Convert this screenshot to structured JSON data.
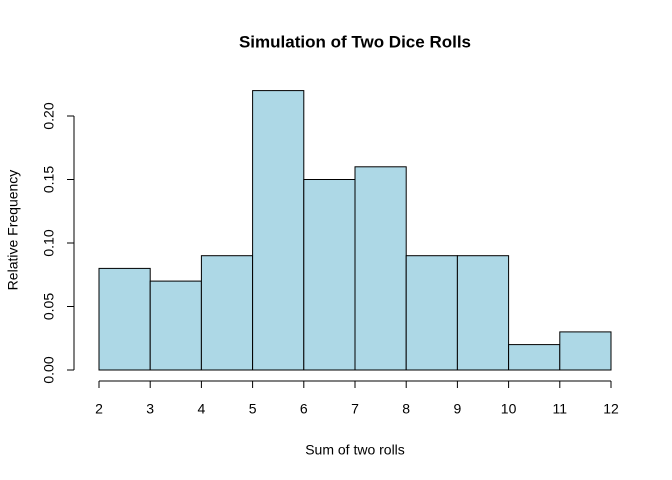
{
  "chart_data": {
    "type": "histogram",
    "title": "Simulation of Two Dice Rolls",
    "x_label": "Sum of two rolls",
    "y_label": "Relative Frequency",
    "bins": [
      2,
      3,
      4,
      5,
      6,
      7,
      8,
      9,
      10,
      11,
      12
    ],
    "values": [
      0.08,
      0.07,
      0.09,
      0.22,
      0.15,
      0.16,
      0.09,
      0.09,
      0.02,
      0.03
    ],
    "color": "#add8e6",
    "xlim": [
      2,
      12
    ],
    "xticks": [
      2,
      3,
      4,
      5,
      6,
      7,
      8,
      9,
      10,
      11,
      12
    ],
    "ylim": [
      0,
      0.22
    ],
    "yticks": [
      {
        "value": 0,
        "label": "0.00"
      },
      {
        "value": 0.05,
        "label": "0.05"
      },
      {
        "value": 0.1,
        "label": "0.10"
      },
      {
        "value": 0.15,
        "label": "0.15"
      },
      {
        "value": 0.2,
        "label": "0.20"
      }
    ]
  }
}
